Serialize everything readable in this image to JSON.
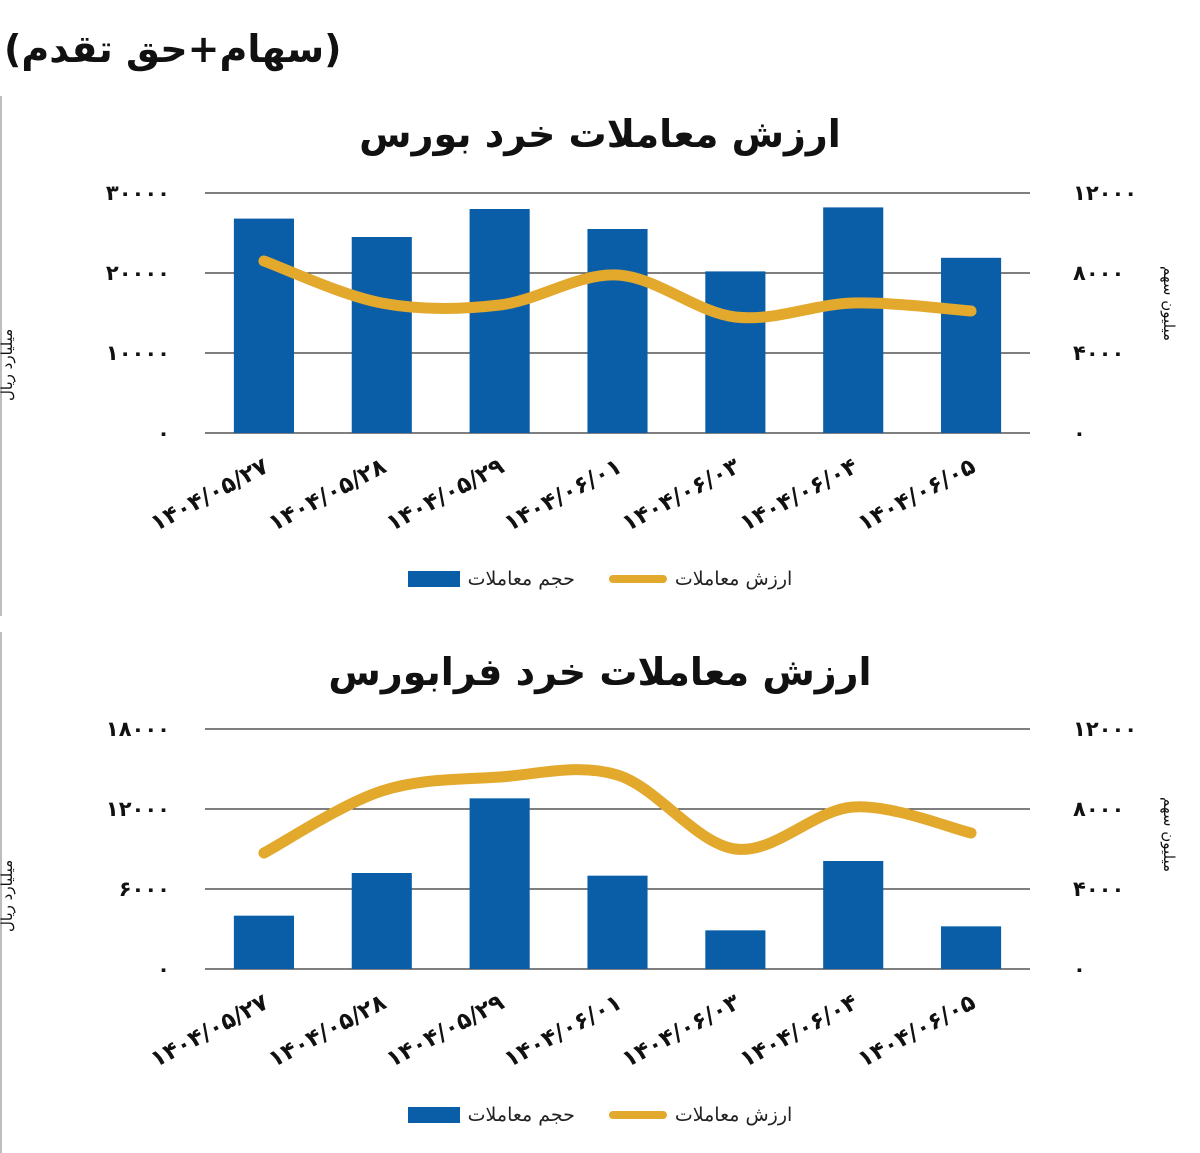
{
  "header": {
    "title": "(سهام+حق تقدم)"
  },
  "colors": {
    "bar": "#0a5ea8",
    "line": "#e2a92d",
    "grid": "#333333"
  },
  "chart_data": [
    {
      "type": "bar",
      "title": "ارزش معاملات خرد بورس",
      "ylabel_left": "میلیارد ریال",
      "ylabel_right": "میلیون سهم",
      "categories": [
        "۱۴۰۴/۰۵/۲۷",
        "۱۴۰۴/۰۵/۲۸",
        "۱۴۰۴/۰۵/۲۹",
        "۱۴۰۴/۰۶/۰۱",
        "۱۴۰۴/۰۶/۰۳",
        "۱۴۰۴/۰۶/۰۴",
        "۱۴۰۴/۰۶/۰۵"
      ],
      "yticks_left": [
        "۰",
        "۱۰۰۰۰",
        "۲۰۰۰۰",
        "۳۰۰۰۰"
      ],
      "yticks_right": [
        "۰",
        "۴۰۰۰",
        "۸۰۰۰",
        "۱۲۰۰۰"
      ],
      "ylim_left": [
        0,
        30000
      ],
      "ylim_right": [
        0,
        12000
      ],
      "grid": true,
      "legend_position": "bottom",
      "series": [
        {
          "name": "حجم معاملات",
          "kind": "bar",
          "axis": "left",
          "values": [
            26800,
            24500,
            28000,
            25500,
            20200,
            28200,
            21900
          ]
        },
        {
          "name": "ارزش معاملات",
          "kind": "line",
          "axis": "right",
          "values": [
            8600,
            6500,
            6400,
            7900,
            5800,
            6500,
            6100
          ]
        }
      ]
    },
    {
      "type": "bar",
      "title": "ارزش معاملات خرد فرابورس",
      "ylabel_left": "میلیارد ریال",
      "ylabel_right": "میلیون سهم",
      "categories": [
        "۱۴۰۴/۰۵/۲۷",
        "۱۴۰۴/۰۵/۲۸",
        "۱۴۰۴/۰۵/۲۹",
        "۱۴۰۴/۰۶/۰۱",
        "۱۴۰۴/۰۶/۰۳",
        "۱۴۰۴/۰۶/۰۴",
        "۱۴۰۴/۰۶/۰۵"
      ],
      "yticks_left": [
        "۰",
        "۶۰۰۰",
        "۱۲۰۰۰",
        "۱۸۰۰۰"
      ],
      "yticks_right": [
        "۰",
        "۴۰۰۰",
        "۸۰۰۰",
        "۱۲۰۰۰"
      ],
      "ylim_left": [
        0,
        18000
      ],
      "ylim_right": [
        0,
        12000
      ],
      "grid": true,
      "legend_position": "bottom",
      "series": [
        {
          "name": "حجم معاملات",
          "kind": "bar",
          "axis": "left",
          "values": [
            4000,
            7200,
            12800,
            7000,
            2900,
            8100,
            3200
          ]
        },
        {
          "name": "ارزش معاملات",
          "kind": "line",
          "axis": "right",
          "values": [
            5800,
            8900,
            9600,
            9700,
            6000,
            8100,
            6800
          ]
        }
      ]
    }
  ]
}
